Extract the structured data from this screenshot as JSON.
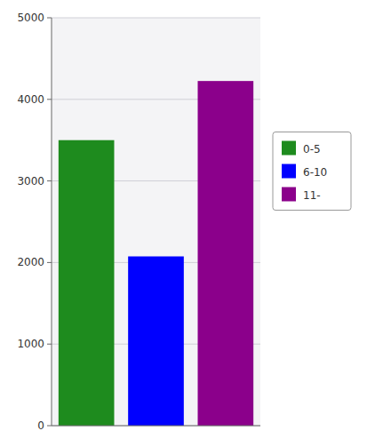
{
  "chart_data": {
    "type": "bar",
    "categories": [
      "0-5",
      "6-10",
      "11-"
    ],
    "values": [
      3500,
      2075,
      4225
    ],
    "colors": [
      "#1e8b1e",
      "#0000ff",
      "#8b008b"
    ],
    "ylim": [
      0,
      5000
    ],
    "yticks": [
      0,
      1000,
      2000,
      3000,
      4000,
      5000
    ],
    "grid": true,
    "legend": "right",
    "tick_labels": "y"
  }
}
